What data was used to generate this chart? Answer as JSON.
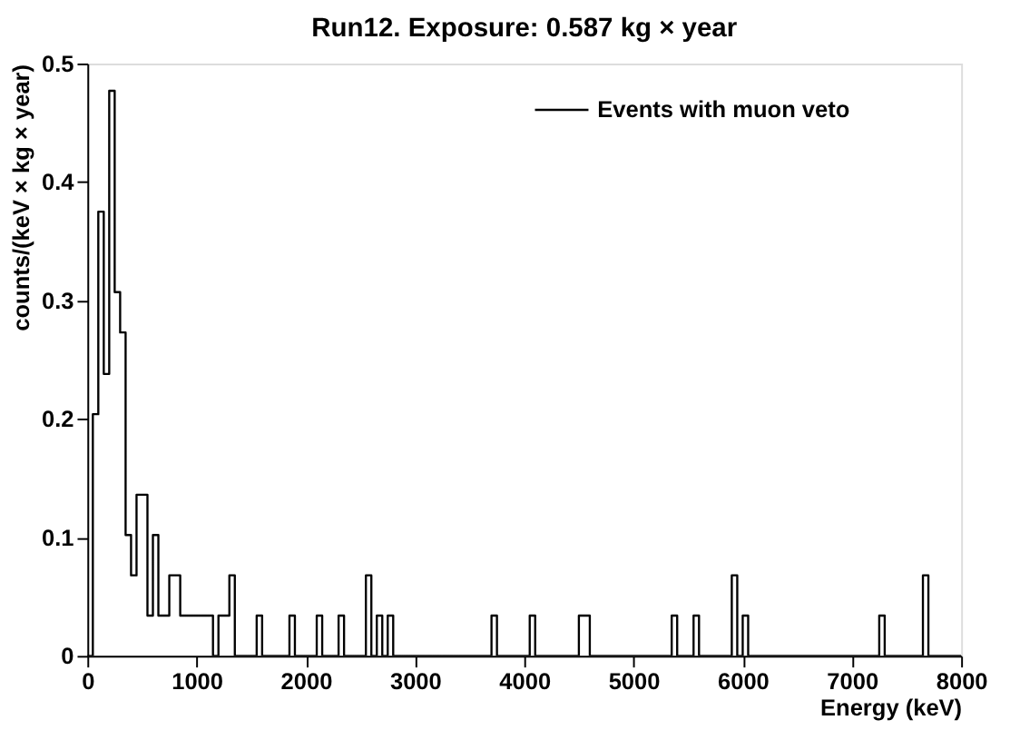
{
  "chart_data": {
    "type": "histogram",
    "title": "Run12. Exposure:  0.587 kg × year",
    "xlabel": "Energy (keV)",
    "ylabel": "counts/(keV × kg × year)",
    "bins": [
      0,
      50,
      100,
      150,
      200,
      250,
      300,
      350,
      400,
      450,
      500,
      550,
      600,
      650,
      700,
      750,
      800,
      850,
      900,
      950,
      1000,
      1050,
      1100,
      1150,
      1200,
      1250,
      1300,
      1350,
      1400,
      1450,
      1500,
      1550,
      1600,
      1650,
      1700,
      1750,
      1800,
      1850,
      1900,
      1950,
      2000,
      2050,
      2100,
      2150,
      2200,
      2250,
      2300,
      2350,
      2400,
      2450,
      2500,
      2550,
      2600,
      2650,
      2700,
      2750,
      2800,
      2850,
      2900,
      2950,
      3000,
      3050,
      3100,
      3150,
      3200,
      3250,
      3300,
      3350,
      3400,
      3450,
      3500,
      3550,
      3600,
      3650,
      3700,
      3750,
      3800,
      3850,
      3900,
      3950,
      4000,
      4050,
      4100,
      4150,
      4200,
      4250,
      4300,
      4350,
      4400,
      4450,
      4500,
      4550,
      4600,
      4650,
      4700,
      4750,
      4800,
      4850,
      4900,
      4950,
      5000,
      5050,
      5100,
      5150,
      5200,
      5250,
      5300,
      5350,
      5400,
      5450,
      5500,
      5550,
      5600,
      5650,
      5700,
      5750,
      5800,
      5850,
      5900,
      5950,
      6000,
      6050,
      6100,
      6150,
      6200,
      6250,
      6300,
      6350,
      6400,
      6450,
      6500,
      6550,
      6600,
      6650,
      6700,
      6750,
      6800,
      6850,
      6900,
      6950,
      7000,
      7050,
      7100,
      7150,
      7200,
      7250,
      7300,
      7350,
      7400,
      7450,
      7500,
      7550,
      7600,
      7650,
      7700,
      7750,
      7800,
      7850,
      7900,
      7950,
      8000
    ],
    "series": [
      {
        "name": "Events with muon veto",
        "color": "#000000",
        "values": [
          0,
          0.204,
          0.375,
          0.238,
          0.477,
          0.307,
          0.273,
          0.102,
          0.068,
          0.136,
          0.136,
          0.034,
          0.102,
          0.034,
          0.034,
          0.068,
          0.068,
          0.034,
          0.034,
          0.034,
          0.034,
          0.034,
          0.034,
          0,
          0.034,
          0.034,
          0.068,
          0,
          0,
          0,
          0,
          0.034,
          0,
          0,
          0,
          0,
          0,
          0.034,
          0,
          0,
          0,
          0,
          0.034,
          0,
          0,
          0,
          0.034,
          0,
          0,
          0,
          0,
          0.068,
          0,
          0.034,
          0,
          0.034,
          0,
          0,
          0,
          0,
          0,
          0,
          0,
          0,
          0,
          0,
          0,
          0,
          0,
          0,
          0,
          0,
          0,
          0,
          0.034,
          0,
          0,
          0,
          0,
          0,
          0,
          0.034,
          0,
          0,
          0,
          0,
          0,
          0,
          0,
          0,
          0.034,
          0.034,
          0,
          0,
          0,
          0,
          0,
          0,
          0,
          0,
          0,
          0,
          0,
          0,
          0,
          0,
          0,
          0.034,
          0,
          0,
          0,
          0.034,
          0,
          0,
          0,
          0,
          0,
          0,
          0.068,
          0,
          0.034,
          0,
          0,
          0,
          0,
          0,
          0,
          0,
          0,
          0,
          0,
          0,
          0,
          0,
          0,
          0,
          0,
          0,
          0,
          0,
          0,
          0,
          0,
          0,
          0,
          0.034,
          0,
          0,
          0,
          0,
          0,
          0,
          0,
          0.068,
          0,
          0,
          0,
          0,
          0,
          0
        ]
      }
    ],
    "xlim": [
      0,
      8000
    ],
    "ylim": [
      0,
      0.5
    ],
    "xticks": [
      0,
      1000,
      2000,
      3000,
      4000,
      5000,
      6000,
      7000,
      8000
    ],
    "yticks": [
      0,
      0.1,
      0.2,
      0.3,
      0.4,
      0.5
    ],
    "legend": "top right",
    "grid": false
  }
}
